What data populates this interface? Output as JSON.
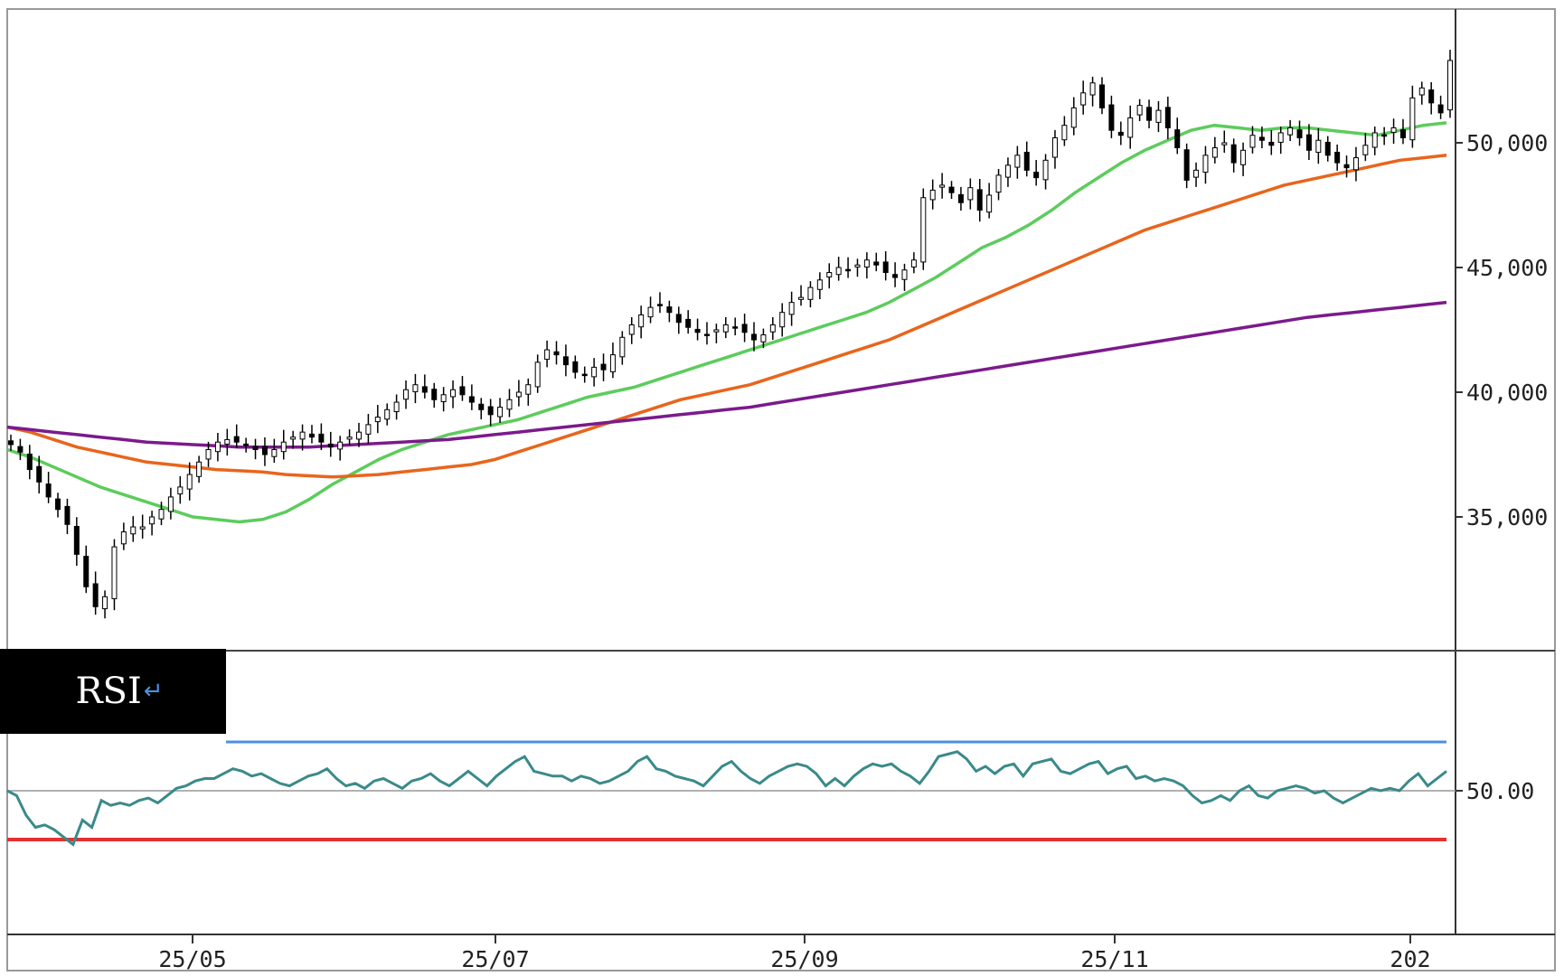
{
  "chart_data": [
    {
      "type": "candlestick",
      "panel": "price",
      "x_ticks": [
        "25/05",
        "25/07",
        "25/09",
        "25/11",
        "202"
      ],
      "y_ticks": [
        "35,000",
        "40,000",
        "45,000",
        "50,000"
      ],
      "ylim": [
        30000,
        55000
      ],
      "grid": false,
      "moving_averages": [
        {
          "color": "#5ccc5c",
          "values": [
            37700,
            37400,
            37000,
            36600,
            36200,
            35900,
            35600,
            35300,
            35000,
            34900,
            34800,
            34900,
            35200,
            35700,
            36300,
            36800,
            37300,
            37700,
            38000,
            38300,
            38500,
            38700,
            38900,
            39200,
            39500,
            39800,
            40000,
            40200,
            40500,
            40800,
            41100,
            41400,
            41700,
            42000,
            42300,
            42600,
            42900,
            43200,
            43600,
            44100,
            44600,
            45200,
            45800,
            46200,
            46700,
            47300,
            48000,
            48600,
            49200,
            49700,
            50100,
            50500,
            50700,
            50600,
            50500,
            50600,
            50600,
            50500,
            50400,
            50300,
            50500,
            50700,
            50800
          ]
        },
        {
          "color": "#e8651c",
          "values": [
            38600,
            38400,
            38100,
            37800,
            37600,
            37400,
            37200,
            37100,
            37000,
            36900,
            36850,
            36800,
            36700,
            36650,
            36600,
            36650,
            36700,
            36800,
            36900,
            37000,
            37100,
            37300,
            37600,
            37900,
            38200,
            38500,
            38800,
            39100,
            39400,
            39700,
            39900,
            40100,
            40300,
            40600,
            40900,
            41200,
            41500,
            41800,
            42100,
            42500,
            42900,
            43300,
            43700,
            44100,
            44500,
            44900,
            45300,
            45700,
            46100,
            46500,
            46800,
            47100,
            47400,
            47700,
            48000,
            48300,
            48500,
            48700,
            48900,
            49100,
            49300,
            49400,
            49500
          ]
        },
        {
          "color": "#7b1a8c",
          "values": [
            38600,
            38500,
            38400,
            38300,
            38200,
            38100,
            38000,
            37950,
            37900,
            37850,
            37800,
            37800,
            37800,
            37800,
            37850,
            37900,
            37950,
            38000,
            38050,
            38100,
            38200,
            38300,
            38400,
            38500,
            38600,
            38700,
            38800,
            38900,
            39000,
            39100,
            39200,
            39300,
            39400,
            39550,
            39700,
            39850,
            40000,
            40150,
            40300,
            40450,
            40600,
            40750,
            40900,
            41050,
            41200,
            41350,
            41500,
            41650,
            41800,
            41950,
            42100,
            42250,
            42400,
            42550,
            42700,
            42850,
            43000,
            43100,
            43200,
            43300,
            43400,
            43500,
            43600
          ]
        }
      ],
      "closes": [
        37900,
        37600,
        36900,
        36400,
        35800,
        35300,
        34700,
        33500,
        32200,
        31400,
        31800,
        33800,
        34400,
        34600,
        34600,
        35000,
        35300,
        35800,
        36200,
        36700,
        37200,
        37700,
        38000,
        38100,
        38000,
        37900,
        37700,
        37500,
        37700,
        38000,
        38200,
        38400,
        38200,
        38000,
        37800,
        38000,
        38200,
        38400,
        38700,
        39000,
        39300,
        39600,
        40100,
        40300,
        40000,
        39700,
        39900,
        40100,
        39900,
        39600,
        39300,
        39100,
        39400,
        39700,
        40000,
        40300,
        41200,
        41700,
        41500,
        41100,
        40800,
        40700,
        41000,
        40900,
        41500,
        42200,
        42700,
        43100,
        43400,
        43500,
        43200,
        42800,
        42600,
        42400,
        42300,
        42500,
        42700,
        42600,
        42400,
        42100,
        42300,
        42700,
        43200,
        43600,
        43800,
        44200,
        44500,
        44800,
        45000,
        44900,
        45100,
        45300,
        45100,
        44800,
        44600,
        44900,
        45300,
        47800,
        48100,
        48300,
        48000,
        47600,
        48200,
        47300,
        47900,
        48700,
        49100,
        49500,
        48900,
        48600,
        49300,
        50200,
        50700,
        51400,
        52000,
        52400,
        51400,
        50500,
        50300,
        51000,
        51500,
        50900,
        51300,
        50600,
        49800,
        48500,
        48900,
        49500,
        49800,
        50000,
        49200,
        49700,
        50300,
        50100,
        49900,
        50400,
        50600,
        50200,
        49700,
        50100,
        49500,
        49200,
        49000,
        49400,
        49900,
        50400,
        50300,
        50600,
        50200,
        51800,
        52200,
        51600,
        51200,
        53300
      ]
    },
    {
      "type": "line",
      "panel": "RSI",
      "label": "RSI",
      "y_ticks": [
        "50.00"
      ],
      "ylim": [
        0,
        100
      ],
      "overbought": 70,
      "oversold": 30,
      "overbought_color": "#4a90e2",
      "oversold_color": "#e53030",
      "line_color": "#3a8a8a",
      "values": [
        50,
        48,
        40,
        35,
        36,
        34,
        31,
        28,
        38,
        35,
        46,
        44,
        45,
        44,
        46,
        47,
        45,
        48,
        51,
        52,
        54,
        55,
        55,
        57,
        59,
        58,
        56,
        57,
        55,
        53,
        52,
        54,
        56,
        57,
        59,
        55,
        52,
        53,
        51,
        54,
        55,
        53,
        51,
        54,
        55,
        57,
        54,
        52,
        55,
        58,
        55,
        52,
        56,
        59,
        62,
        64,
        58,
        57,
        56,
        56,
        54,
        56,
        55,
        53,
        54,
        56,
        58,
        62,
        64,
        59,
        58,
        56,
        55,
        54,
        52,
        56,
        60,
        62,
        58,
        55,
        53,
        56,
        58,
        60,
        61,
        60,
        57,
        52,
        55,
        52,
        56,
        59,
        61,
        60,
        61,
        58,
        56,
        53,
        58,
        64,
        65,
        66,
        63,
        58,
        60,
        57,
        60,
        61,
        56,
        61,
        62,
        63,
        58,
        57,
        59,
        61,
        62,
        57,
        59,
        60,
        55,
        56,
        54,
        55,
        54,
        52,
        48,
        45,
        46,
        48,
        46,
        50,
        52,
        48,
        47,
        50,
        51,
        52,
        51,
        49,
        50,
        47,
        45,
        47,
        49,
        51,
        50,
        51,
        50,
        54,
        57,
        52,
        55,
        58
      ]
    }
  ]
}
